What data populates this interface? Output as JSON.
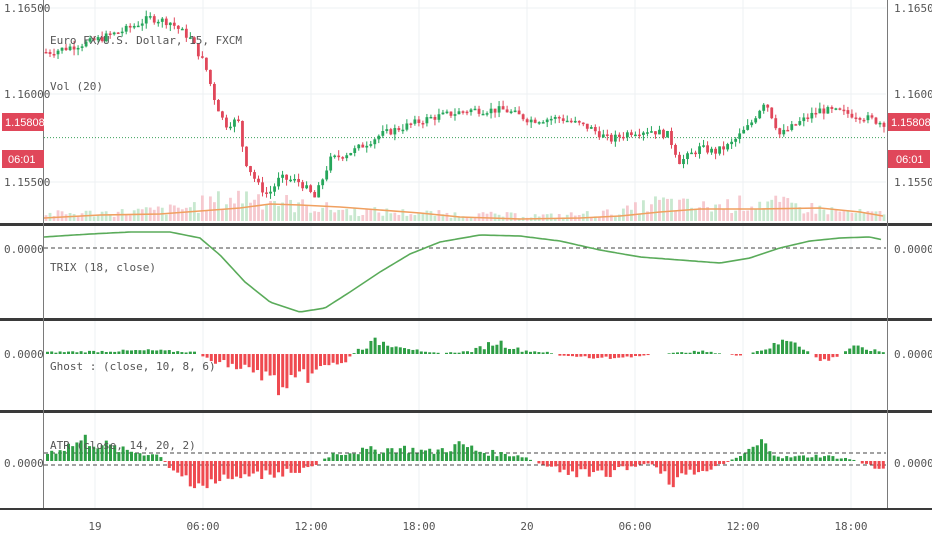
{
  "chart_data": [
    {
      "type": "candlestick",
      "title": "Euro FX/U.S. Dollar, 15, FXCM",
      "volume_label": "Vol (20)",
      "y_ticks": [
        "1.16500",
        "1.16000",
        "1.15500"
      ],
      "y_tick_values": [
        1.165,
        1.16,
        1.155
      ],
      "ylim": [
        1.1526,
        1.1655
      ],
      "last_price_tag": "1.15808",
      "last_price": 1.15808,
      "countdown_tag": "06:01",
      "dotted_level": 1.1575,
      "colors": {
        "up": "#26a65b",
        "down": "#e0475a",
        "ma": "#f0a060",
        "ref_line": "#3aa05a"
      }
    },
    {
      "type": "line",
      "title": "TRIX (18, close)",
      "y_ticks": [
        "0.0000"
      ],
      "zero_level": 0,
      "color": "#5aab5a"
    },
    {
      "type": "bar",
      "title": "Ghost : (close, 10, 8, 6)",
      "y_ticks": [
        "0.0000"
      ],
      "zero_level": 0,
      "colors": {
        "positive": "#2e9e45",
        "negative": "#ef4a50"
      }
    },
    {
      "type": "bar",
      "title": "ATR (close, 14, 20, 2)",
      "y_ticks": [
        "0.0000"
      ],
      "zero_level": 0,
      "colors": {
        "positive": "#2e9e45",
        "negative": "#ef4a50"
      }
    }
  ],
  "time_axis": [
    "19",
    "06:00",
    "12:00",
    "18:00",
    "20",
    "06:00",
    "12:00",
    "18:00"
  ]
}
